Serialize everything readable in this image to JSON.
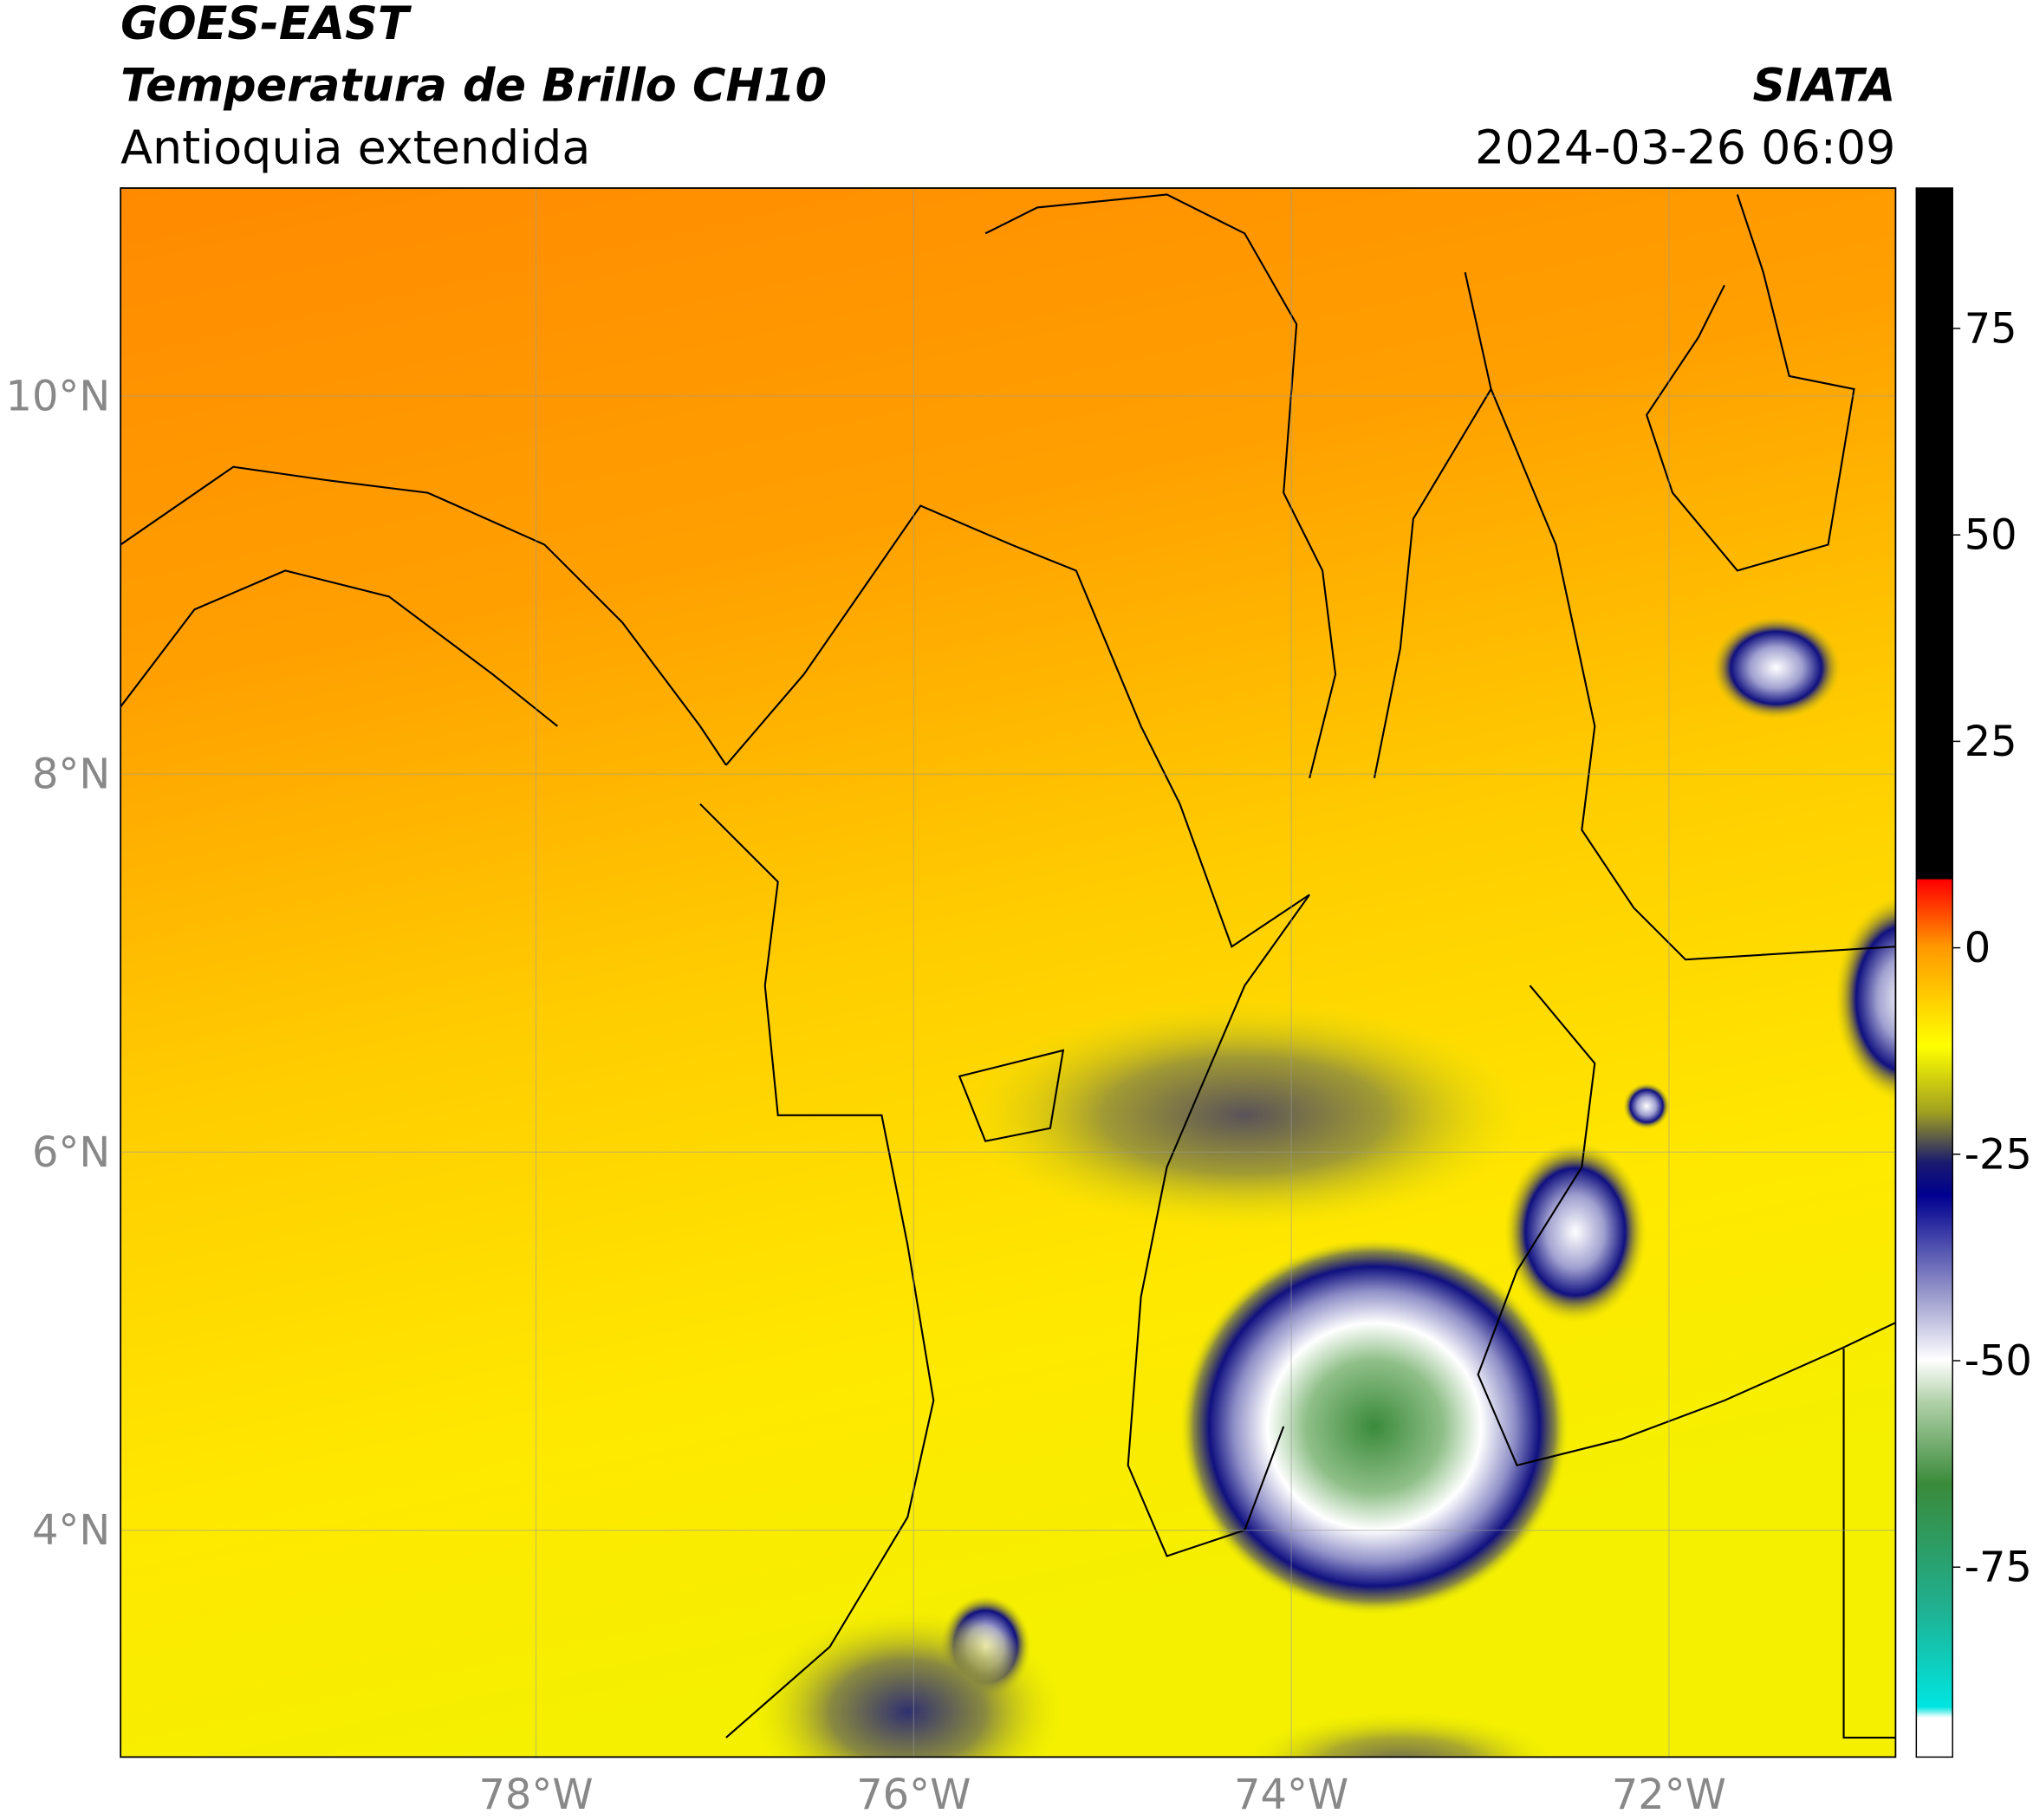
{
  "header": {
    "title": "GOES-EAST",
    "subtitle": "Temperatura de Brillo CH10",
    "region": "Antioquia extendida",
    "source": "SIATA",
    "datetime": "2024-03-26 06:09"
  },
  "map": {
    "xlim": [
      -80.2,
      -70.8
    ],
    "ylim": [
      2.8,
      11.1
    ],
    "xticks": [
      {
        "value": -78,
        "label": "78°W"
      },
      {
        "value": -76,
        "label": "76°W"
      },
      {
        "value": -74,
        "label": "74°W"
      },
      {
        "value": -72,
        "label": "72°W"
      }
    ],
    "yticks": [
      {
        "value": 10,
        "label": "10°N"
      },
      {
        "value": 8,
        "label": "8°N"
      },
      {
        "value": 6,
        "label": "6°N"
      },
      {
        "value": 4,
        "label": "4°N"
      }
    ],
    "grid": true
  },
  "colorbar": {
    "lim": [
      -98,
      92
    ],
    "ticks": [
      75,
      50,
      25,
      0,
      -25,
      -50,
      -75
    ]
  }
}
